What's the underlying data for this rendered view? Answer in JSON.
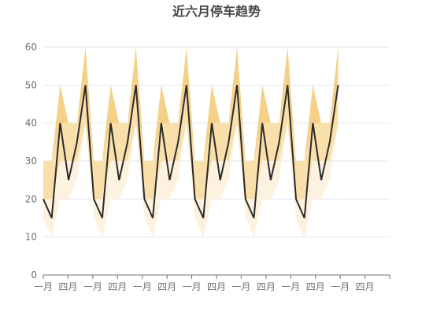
{
  "chart_data": {
    "type": "line",
    "title": "近六月停车趋势",
    "xlabel": "",
    "ylabel": "",
    "ylim": [
      0,
      60
    ],
    "y_ticks": [
      0,
      10,
      20,
      30,
      40,
      50,
      60
    ],
    "x_tick_labels": [
      "一月",
      "四月",
      "一月",
      "四月",
      "一月",
      "四月",
      "一月",
      "四月",
      "一月",
      "四月",
      "一月",
      "四月",
      "一月",
      "四月"
    ],
    "grid": true,
    "legend": "none",
    "colors": {
      "line": "#2b2b2b",
      "band_outer": "#fdf2df",
      "band_mid": "#f9dfaa",
      "band_inner": "#f2c46c",
      "band_top": "#f0c060"
    },
    "x": [
      0,
      1,
      2,
      3,
      4,
      5,
      6,
      7,
      8,
      9,
      10,
      11,
      12,
      13,
      14,
      15,
      16,
      17,
      18,
      19,
      20,
      21,
      22,
      23,
      24,
      25,
      26,
      27,
      28,
      29,
      30,
      31,
      32,
      33,
      34,
      35
    ],
    "series": [
      {
        "role": "line",
        "values": [
          20,
          15,
          40,
          25,
          35,
          50,
          20,
          15,
          40,
          25,
          35,
          50,
          20,
          15,
          40,
          25,
          35,
          50,
          20,
          15,
          40,
          25,
          35,
          50,
          20,
          15,
          40,
          25,
          35,
          50,
          20,
          15,
          40,
          25,
          35,
          50
        ]
      },
      {
        "role": "band-lower",
        "values": [
          15,
          10,
          20,
          20,
          25,
          40,
          15,
          10,
          20,
          20,
          25,
          40,
          15,
          10,
          20,
          20,
          25,
          40,
          15,
          10,
          20,
          20,
          25,
          40,
          15,
          10,
          20,
          20,
          25,
          40,
          15,
          10,
          20,
          20,
          25,
          40
        ]
      },
      {
        "role": "band-q1",
        "values": [
          20,
          20,
          30,
          30,
          30,
          40,
          20,
          20,
          30,
          30,
          30,
          40,
          20,
          20,
          30,
          30,
          30,
          40,
          20,
          20,
          30,
          30,
          30,
          40,
          20,
          20,
          30,
          30,
          30,
          40,
          20,
          20,
          30,
          30,
          30,
          40
        ]
      },
      {
        "role": "band-q3",
        "values": [
          30,
          30,
          40,
          40,
          40,
          50,
          30,
          30,
          40,
          40,
          40,
          50,
          30,
          30,
          40,
          40,
          40,
          50,
          30,
          30,
          40,
          40,
          40,
          50,
          30,
          30,
          40,
          40,
          40,
          50,
          30,
          30,
          40,
          40,
          40,
          50
        ]
      },
      {
        "role": "band-upper",
        "values": [
          30,
          30,
          50,
          40,
          40,
          60,
          30,
          30,
          50,
          40,
          40,
          60,
          30,
          30,
          50,
          40,
          40,
          60,
          30,
          30,
          50,
          40,
          40,
          60,
          30,
          30,
          50,
          40,
          40,
          60,
          30,
          30,
          50,
          40,
          40,
          60
        ]
      }
    ]
  }
}
